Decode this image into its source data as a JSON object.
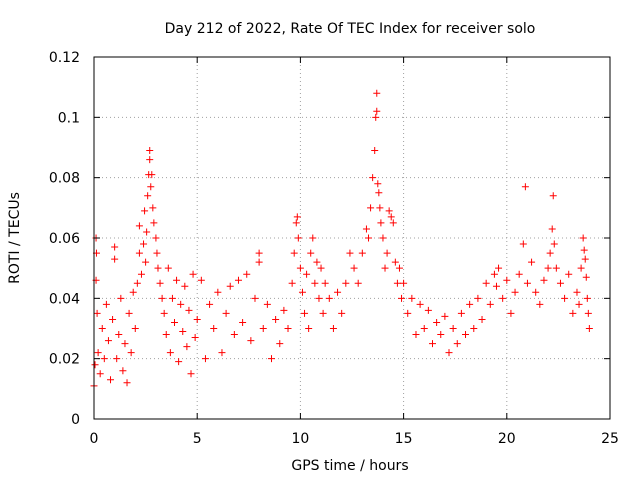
{
  "chart_data": {
    "type": "scatter",
    "title": "Day 212 of 2022, Rate Of TEC Index for receiver solo",
    "xlabel": "GPS time / hours",
    "ylabel": "ROTI / TECUs",
    "xlim": [
      0,
      25
    ],
    "ylim": [
      0,
      0.12
    ],
    "xticks": [
      0,
      5,
      10,
      15,
      20,
      25
    ],
    "yticks": [
      0,
      0.02,
      0.04,
      0.06,
      0.08,
      0.1,
      0.12
    ],
    "xtick_labels": [
      "0",
      "5",
      "10",
      "15",
      "20",
      "25"
    ],
    "ytick_labels": [
      "0",
      "0.02",
      "0.04",
      "0.06",
      "0.08",
      "0.1",
      "0.12"
    ],
    "grid": true,
    "marker": "+",
    "color": "#ff0000",
    "series": [
      {
        "name": "ROTI",
        "points": [
          [
            0.0,
            0.011
          ],
          [
            0.05,
            0.018
          ],
          [
            0.1,
            0.06
          ],
          [
            0.1,
            0.046
          ],
          [
            0.12,
            0.055
          ],
          [
            0.15,
            0.035
          ],
          [
            0.2,
            0.022
          ],
          [
            0.3,
            0.015
          ],
          [
            0.4,
            0.03
          ],
          [
            0.5,
            0.02
          ],
          [
            0.6,
            0.038
          ],
          [
            0.7,
            0.026
          ],
          [
            0.8,
            0.013
          ],
          [
            0.9,
            0.033
          ],
          [
            1.0,
            0.057
          ],
          [
            1.0,
            0.053
          ],
          [
            1.1,
            0.02
          ],
          [
            1.2,
            0.028
          ],
          [
            1.3,
            0.04
          ],
          [
            1.4,
            0.016
          ],
          [
            1.5,
            0.025
          ],
          [
            1.6,
            0.012
          ],
          [
            1.7,
            0.035
          ],
          [
            1.8,
            0.022
          ],
          [
            1.9,
            0.042
          ],
          [
            2.0,
            0.03
          ],
          [
            2.1,
            0.045
          ],
          [
            2.2,
            0.055
          ],
          [
            2.2,
            0.064
          ],
          [
            2.3,
            0.048
          ],
          [
            2.4,
            0.058
          ],
          [
            2.45,
            0.069
          ],
          [
            2.5,
            0.052
          ],
          [
            2.55,
            0.062
          ],
          [
            2.6,
            0.074
          ],
          [
            2.65,
            0.081
          ],
          [
            2.7,
            0.089
          ],
          [
            2.7,
            0.086
          ],
          [
            2.75,
            0.077
          ],
          [
            2.8,
            0.081
          ],
          [
            2.85,
            0.07
          ],
          [
            2.9,
            0.065
          ],
          [
            3.0,
            0.06
          ],
          [
            3.05,
            0.055
          ],
          [
            3.1,
            0.05
          ],
          [
            3.2,
            0.045
          ],
          [
            3.3,
            0.04
          ],
          [
            3.4,
            0.035
          ],
          [
            3.5,
            0.028
          ],
          [
            3.6,
            0.05
          ],
          [
            3.7,
            0.022
          ],
          [
            3.8,
            0.04
          ],
          [
            3.9,
            0.032
          ],
          [
            4.0,
            0.046
          ],
          [
            4.1,
            0.019
          ],
          [
            4.2,
            0.038
          ],
          [
            4.3,
            0.029
          ],
          [
            4.4,
            0.044
          ],
          [
            4.5,
            0.024
          ],
          [
            4.6,
            0.036
          ],
          [
            4.7,
            0.015
          ],
          [
            4.8,
            0.048
          ],
          [
            4.9,
            0.027
          ],
          [
            5.0,
            0.033
          ],
          [
            5.2,
            0.046
          ],
          [
            5.4,
            0.02
          ],
          [
            5.6,
            0.038
          ],
          [
            5.8,
            0.03
          ],
          [
            6.0,
            0.042
          ],
          [
            6.2,
            0.022
          ],
          [
            6.4,
            0.035
          ],
          [
            6.6,
            0.044
          ],
          [
            6.8,
            0.028
          ],
          [
            7.0,
            0.046
          ],
          [
            7.2,
            0.032
          ],
          [
            7.4,
            0.048
          ],
          [
            7.6,
            0.026
          ],
          [
            7.8,
            0.04
          ],
          [
            8.0,
            0.055
          ],
          [
            8.0,
            0.052
          ],
          [
            8.2,
            0.03
          ],
          [
            8.4,
            0.038
          ],
          [
            8.6,
            0.02
          ],
          [
            8.8,
            0.033
          ],
          [
            9.0,
            0.025
          ],
          [
            9.2,
            0.036
          ],
          [
            9.4,
            0.03
          ],
          [
            9.6,
            0.045
          ],
          [
            9.7,
            0.055
          ],
          [
            9.8,
            0.065
          ],
          [
            9.85,
            0.067
          ],
          [
            9.9,
            0.06
          ],
          [
            10.0,
            0.05
          ],
          [
            10.1,
            0.042
          ],
          [
            10.2,
            0.035
          ],
          [
            10.3,
            0.048
          ],
          [
            10.4,
            0.03
          ],
          [
            10.5,
            0.055
          ],
          [
            10.6,
            0.06
          ],
          [
            10.7,
            0.045
          ],
          [
            10.8,
            0.052
          ],
          [
            10.9,
            0.04
          ],
          [
            11.0,
            0.05
          ],
          [
            11.1,
            0.035
          ],
          [
            11.2,
            0.045
          ],
          [
            11.4,
            0.04
          ],
          [
            11.6,
            0.03
          ],
          [
            11.8,
            0.042
          ],
          [
            12.0,
            0.035
          ],
          [
            12.2,
            0.045
          ],
          [
            12.4,
            0.055
          ],
          [
            12.6,
            0.05
          ],
          [
            12.8,
            0.045
          ],
          [
            13.0,
            0.055
          ],
          [
            13.2,
            0.063
          ],
          [
            13.3,
            0.06
          ],
          [
            13.4,
            0.07
          ],
          [
            13.5,
            0.08
          ],
          [
            13.6,
            0.089
          ],
          [
            13.65,
            0.1
          ],
          [
            13.7,
            0.108
          ],
          [
            13.7,
            0.102
          ],
          [
            13.75,
            0.078
          ],
          [
            13.8,
            0.075
          ],
          [
            13.85,
            0.07
          ],
          [
            13.9,
            0.065
          ],
          [
            14.0,
            0.06
          ],
          [
            14.1,
            0.05
          ],
          [
            14.2,
            0.055
          ],
          [
            14.3,
            0.069
          ],
          [
            14.4,
            0.067
          ],
          [
            14.5,
            0.065
          ],
          [
            14.6,
            0.052
          ],
          [
            14.7,
            0.045
          ],
          [
            14.8,
            0.05
          ],
          [
            14.9,
            0.04
          ],
          [
            15.0,
            0.045
          ],
          [
            15.2,
            0.035
          ],
          [
            15.4,
            0.04
          ],
          [
            15.6,
            0.028
          ],
          [
            15.8,
            0.038
          ],
          [
            16.0,
            0.03
          ],
          [
            16.2,
            0.036
          ],
          [
            16.4,
            0.025
          ],
          [
            16.6,
            0.032
          ],
          [
            16.8,
            0.028
          ],
          [
            17.0,
            0.034
          ],
          [
            17.2,
            0.022
          ],
          [
            17.4,
            0.03
          ],
          [
            17.6,
            0.025
          ],
          [
            17.8,
            0.035
          ],
          [
            18.0,
            0.028
          ],
          [
            18.2,
            0.038
          ],
          [
            18.4,
            0.03
          ],
          [
            18.6,
            0.04
          ],
          [
            18.8,
            0.033
          ],
          [
            19.0,
            0.045
          ],
          [
            19.2,
            0.038
          ],
          [
            19.4,
            0.048
          ],
          [
            19.5,
            0.044
          ],
          [
            19.6,
            0.05
          ],
          [
            19.8,
            0.04
          ],
          [
            20.0,
            0.046
          ],
          [
            20.2,
            0.035
          ],
          [
            20.4,
            0.042
          ],
          [
            20.6,
            0.048
          ],
          [
            20.8,
            0.058
          ],
          [
            20.9,
            0.077
          ],
          [
            21.0,
            0.045
          ],
          [
            21.2,
            0.052
          ],
          [
            21.4,
            0.042
          ],
          [
            21.6,
            0.038
          ],
          [
            21.8,
            0.046
          ],
          [
            22.0,
            0.05
          ],
          [
            22.1,
            0.055
          ],
          [
            22.2,
            0.063
          ],
          [
            22.25,
            0.074
          ],
          [
            22.3,
            0.058
          ],
          [
            22.4,
            0.05
          ],
          [
            22.6,
            0.045
          ],
          [
            22.8,
            0.04
          ],
          [
            23.0,
            0.048
          ],
          [
            23.2,
            0.035
          ],
          [
            23.4,
            0.042
          ],
          [
            23.5,
            0.038
          ],
          [
            23.6,
            0.05
          ],
          [
            23.7,
            0.06
          ],
          [
            23.75,
            0.056
          ],
          [
            23.8,
            0.053
          ],
          [
            23.85,
            0.047
          ],
          [
            23.9,
            0.04
          ],
          [
            23.95,
            0.035
          ],
          [
            24.0,
            0.03
          ]
        ]
      }
    ]
  }
}
